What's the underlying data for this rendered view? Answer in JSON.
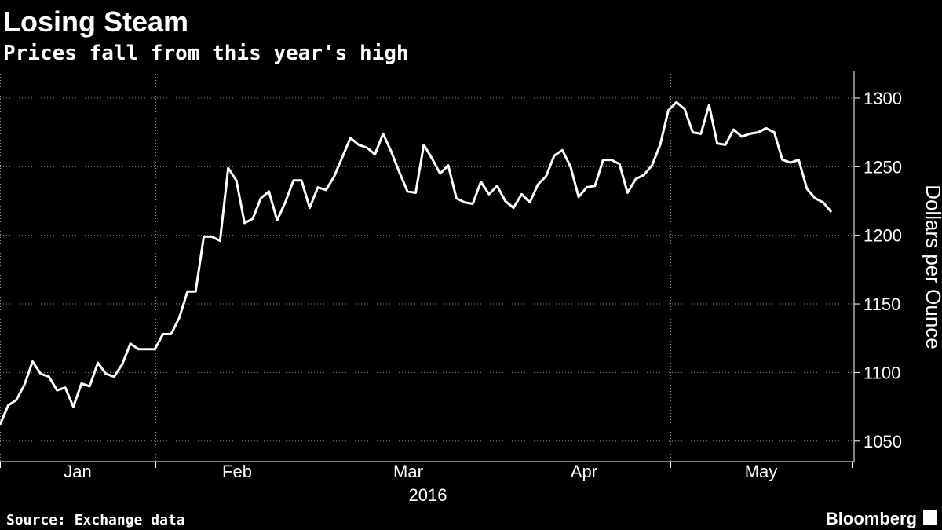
{
  "chart_data": {
    "type": "line",
    "title": "Losing Steam",
    "subtitle": "Prices fall from this year's high",
    "source": "Source: Exchange data",
    "brand": "Bloomberg",
    "y_axis_label": "Dollars per Ounce",
    "x_labels": [
      "Jan",
      "Feb",
      "Mar",
      "Apr",
      "May"
    ],
    "x_year_label": "2016",
    "color": "#ffffff",
    "grid": true,
    "ylim": [
      1035,
      1320
    ],
    "yticks": [
      1050,
      1100,
      1150,
      1200,
      1250,
      1300
    ],
    "values": [
      1062,
      1076,
      1080,
      1091,
      1108,
      1099,
      1097,
      1087,
      1089,
      1075,
      1092,
      1090,
      1107,
      1099,
      1097,
      1106,
      1121,
      1117,
      1117,
      1117,
      1128,
      1128,
      1140,
      1159,
      1159,
      1199,
      1199,
      1196,
      1249,
      1240,
      1209,
      1212,
      1227,
      1232,
      1211,
      1224,
      1240,
      1240,
      1220,
      1235,
      1233,
      1243,
      1257,
      1271,
      1266,
      1264,
      1259,
      1274,
      1261,
      1246,
      1232,
      1231,
      1266,
      1256,
      1245,
      1251,
      1227,
      1224,
      1223,
      1239,
      1230,
      1236,
      1225,
      1220,
      1230,
      1224,
      1237,
      1243,
      1258,
      1262,
      1250,
      1228,
      1235,
      1236,
      1255,
      1255,
      1252,
      1231,
      1241,
      1244,
      1251,
      1266,
      1291,
      1297,
      1292,
      1275,
      1274,
      1295,
      1267,
      1266,
      1277,
      1272,
      1274,
      1275,
      1278,
      1275,
      1255,
      1253,
      1255,
      1234,
      1227,
      1224,
      1217
    ]
  }
}
